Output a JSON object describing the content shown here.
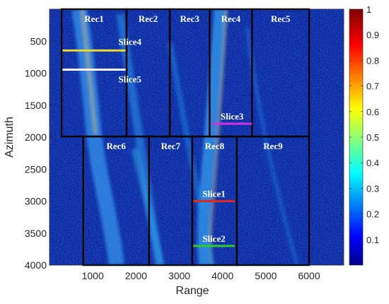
{
  "chart_data": {
    "type": "heatmap",
    "title": "",
    "xlabel": "Range",
    "ylabel": "Azimuth",
    "x_ticks": [
      1000,
      2000,
      3000,
      4000,
      5000,
      6000
    ],
    "y_ticks": [
      500,
      1000,
      1500,
      2000,
      2500,
      3000,
      3500,
      4000
    ],
    "xlim": [
      0,
      6800
    ],
    "ylim": [
      0,
      4000
    ],
    "y_reversed": true,
    "colormap": "jet",
    "colorbar": {
      "range": [
        0,
        1
      ],
      "ticks": [
        0.1,
        0.2,
        0.3,
        0.4,
        0.5,
        0.6,
        0.7,
        0.8,
        0.9,
        1
      ]
    },
    "background_color": "#0a1f9a",
    "rectangles": [
      {
        "label": "Rec1",
        "x0": 280,
        "x1": 1780,
        "y0": 0,
        "y1": 1990
      },
      {
        "label": "Rec2",
        "x0": 1780,
        "x1": 2780,
        "y0": 0,
        "y1": 1990
      },
      {
        "label": "Rec3",
        "x0": 2780,
        "x1": 3700,
        "y0": 0,
        "y1": 1990
      },
      {
        "label": "Rec4",
        "x0": 3700,
        "x1": 4680,
        "y0": 0,
        "y1": 1990
      },
      {
        "label": "Rec5",
        "x0": 4680,
        "x1": 6000,
        "y0": 0,
        "y1": 1990
      },
      {
        "label": "Rec6",
        "x0": 780,
        "x1": 2300,
        "y0": 1990,
        "y1": 4000
      },
      {
        "label": "Rec7",
        "x0": 2300,
        "x1": 3300,
        "y0": 1990,
        "y1": 4000
      },
      {
        "label": "Rec8",
        "x0": 3300,
        "x1": 4330,
        "y0": 1990,
        "y1": 4000
      },
      {
        "label": "Rec9",
        "x0": 4330,
        "x1": 6000,
        "y0": 1990,
        "y1": 4000
      }
    ],
    "slices": [
      {
        "label": "Slice4",
        "x0": 300,
        "x1": 1760,
        "y": 645,
        "color": "#e8d82a"
      },
      {
        "label": "Slice5",
        "x0": 300,
        "x1": 1760,
        "y": 945,
        "color": "#ffffff"
      },
      {
        "label": "Slice3",
        "x0": 3760,
        "x1": 4680,
        "y": 1790,
        "color": "#d62ee0"
      },
      {
        "label": "Slice1",
        "x0": 3320,
        "x1": 4280,
        "y": 3000,
        "color": "#e0281f"
      },
      {
        "label": "Slice2",
        "x0": 3320,
        "x1": 4280,
        "y": 3700,
        "color": "#2ecc2e"
      }
    ]
  }
}
